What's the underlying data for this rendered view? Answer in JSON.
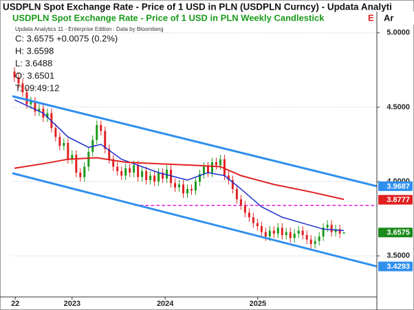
{
  "chart_data": {
    "type": "candlestick",
    "title": "USDPLN Spot Exchange Rate - Price of 1 USD in PLN (USDPLN Curncy) - Updata Analyti",
    "subtitle": "USDPLN Spot Exchange Rate - Price of 1 USD in PLN Weekly Candlestick",
    "subtitle_cut": "E",
    "corner_label": "Ar",
    "source": "Updata Analytics 11 - Enterprise Edition : Data by Bloomberg",
    "info": [
      "C: 3.6575 +0.0075 (0.2%)",
      "H: 3.6598",
      "L: 3.6488",
      "O: 3.6501",
      "T: 09:49:12"
    ],
    "x": [
      0,
      1,
      2,
      3,
      4,
      5,
      6,
      7,
      8,
      9,
      10,
      11,
      12,
      13,
      14,
      15,
      16,
      17,
      18,
      19,
      20,
      21,
      22,
      23,
      24,
      25,
      26,
      27,
      28,
      29,
      30,
      31,
      32,
      33,
      34,
      35,
      36,
      37,
      38,
      39,
      40,
      41,
      42,
      43,
      44,
      45,
      46,
      47,
      48,
      49,
      50,
      51,
      52,
      53,
      54,
      55,
      56,
      57,
      58,
      59,
      60,
      61,
      62,
      63,
      64,
      65,
      66,
      67,
      68,
      69,
      70,
      71,
      72,
      73,
      74,
      75,
      76,
      77,
      78,
      79,
      80
    ],
    "open": [
      4.74,
      4.7,
      4.66,
      4.6,
      4.52,
      4.54,
      4.47,
      4.49,
      4.43,
      4.46,
      4.36,
      4.3,
      4.24,
      4.26,
      4.15,
      4.18,
      4.06,
      4.03,
      4.1,
      4.2,
      4.28,
      4.38,
      4.34,
      4.22,
      4.15,
      4.1,
      4.07,
      4.04,
      4.09,
      4.06,
      4.11,
      4.03,
      4.07,
      4.01,
      4.04,
      4.0,
      4.06,
      4.02,
      4.08,
      3.99,
      3.96,
      3.98,
      3.92,
      3.95,
      3.94,
      4.0,
      4.05,
      4.1,
      4.06,
      4.13,
      4.11,
      4.15,
      4.04,
      4.01,
      3.95,
      3.88,
      3.84,
      3.79,
      3.76,
      3.72,
      3.7,
      3.66,
      3.63,
      3.67,
      3.65,
      3.69,
      3.64,
      3.66,
      3.62,
      3.65,
      3.67,
      3.64,
      3.61,
      3.58,
      3.6,
      3.63,
      3.69,
      3.71,
      3.66,
      3.68,
      3.6501
    ],
    "high": [
      4.77,
      4.73,
      4.69,
      4.63,
      4.57,
      4.57,
      4.52,
      4.52,
      4.49,
      4.49,
      4.39,
      4.33,
      4.29,
      4.29,
      4.21,
      4.21,
      4.09,
      4.13,
      4.23,
      4.31,
      4.41,
      4.41,
      4.37,
      4.25,
      4.18,
      4.13,
      4.1,
      4.12,
      4.12,
      4.14,
      4.14,
      4.1,
      4.1,
      4.07,
      4.07,
      4.09,
      4.09,
      4.11,
      4.11,
      4.02,
      4.01,
      4.01,
      3.98,
      3.98,
      4.03,
      4.08,
      4.13,
      4.13,
      4.16,
      4.16,
      4.18,
      4.18,
      4.07,
      4.04,
      3.98,
      3.91,
      3.87,
      3.82,
      3.79,
      3.75,
      3.73,
      3.69,
      3.7,
      3.7,
      3.72,
      3.72,
      3.69,
      3.69,
      3.68,
      3.7,
      3.7,
      3.67,
      3.64,
      3.63,
      3.66,
      3.72,
      3.74,
      3.74,
      3.71,
      3.71,
      3.6598
    ],
    "low": [
      4.67,
      4.63,
      4.57,
      4.49,
      4.49,
      4.44,
      4.44,
      4.4,
      4.4,
      4.33,
      4.27,
      4.21,
      4.21,
      4.12,
      4.12,
      4.03,
      4.0,
      4.0,
      4.07,
      4.17,
      4.25,
      4.31,
      4.19,
      4.12,
      4.07,
      4.04,
      4.01,
      4.01,
      4.03,
      4.03,
      4.0,
      4.0,
      3.98,
      3.98,
      3.97,
      3.97,
      3.99,
      3.99,
      3.96,
      3.93,
      3.93,
      3.89,
      3.89,
      3.91,
      3.91,
      3.97,
      4.02,
      4.03,
      4.03,
      4.08,
      4.08,
      4.01,
      3.98,
      3.92,
      3.85,
      3.81,
      3.76,
      3.73,
      3.69,
      3.67,
      3.63,
      3.6,
      3.6,
      3.62,
      3.62,
      3.61,
      3.61,
      3.59,
      3.59,
      3.62,
      3.61,
      3.58,
      3.55,
      3.55,
      3.57,
      3.6,
      3.66,
      3.63,
      3.63,
      3.62,
      3.6488
    ],
    "close": [
      4.7,
      4.66,
      4.6,
      4.52,
      4.54,
      4.47,
      4.49,
      4.43,
      4.46,
      4.36,
      4.3,
      4.24,
      4.26,
      4.15,
      4.18,
      4.06,
      4.03,
      4.1,
      4.2,
      4.28,
      4.38,
      4.34,
      4.22,
      4.15,
      4.1,
      4.07,
      4.04,
      4.09,
      4.06,
      4.11,
      4.03,
      4.07,
      4.01,
      4.04,
      4.0,
      4.06,
      4.02,
      4.08,
      3.99,
      3.96,
      3.98,
      3.92,
      3.95,
      3.94,
      4.0,
      4.05,
      4.1,
      4.06,
      4.13,
      4.11,
      4.15,
      4.04,
      4.01,
      3.95,
      3.88,
      3.84,
      3.79,
      3.76,
      3.72,
      3.7,
      3.66,
      3.63,
      3.67,
      3.65,
      3.69,
      3.64,
      3.66,
      3.62,
      3.65,
      3.67,
      3.64,
      3.61,
      3.58,
      3.6,
      3.63,
      3.69,
      3.71,
      3.66,
      3.68,
      3.65,
      3.6575
    ],
    "up_color": "#1a9a1a",
    "down_color": "#e02020",
    "lines": [
      {
        "color": "#1c2fd0",
        "width": 1.5,
        "x": [
          0,
          7,
          13,
          18,
          21,
          26,
          35,
          42,
          47,
          51,
          55,
          60,
          65,
          70,
          75,
          80
        ],
        "values": [
          4.55,
          4.46,
          4.3,
          4.23,
          4.25,
          4.15,
          4.06,
          4.01,
          4.06,
          4.04,
          3.95,
          3.83,
          3.76,
          3.72,
          3.68,
          3.67
        ]
      },
      {
        "color": "#e02020",
        "width": 2,
        "x": [
          0,
          7,
          13,
          20,
          27,
          35,
          43,
          50,
          55,
          63,
          72,
          80
        ],
        "values": [
          4.09,
          4.12,
          4.15,
          4.16,
          4.13,
          4.12,
          4.11,
          4.1,
          4.04,
          3.98,
          3.93,
          3.88
        ]
      },
      {
        "color": "#2f8fef",
        "width": 3,
        "x": [
          -0.5,
          88
        ],
        "values": [
          4.574,
          3.9687
        ]
      },
      {
        "color": "#2f8fef",
        "width": 3,
        "x": [
          -0.5,
          88
        ],
        "values": [
          4.056,
          3.4293
        ]
      }
    ],
    "hline": {
      "value": 3.84,
      "x_start": 29.1,
      "color": "#e020e0"
    },
    "tags": [
      {
        "value": 3.9687,
        "color": "#2f8fef"
      },
      {
        "value": 3.8777,
        "color": "#e02020"
      },
      {
        "value": 3.6575,
        "color": "#1a8a1a"
      },
      {
        "value": 3.4293,
        "color": "#2f8fef"
      }
    ],
    "xlim": [
      -0.5,
      88
    ],
    "xticks": [
      {
        "value": 0.2,
        "label": "22"
      },
      {
        "value": 14,
        "label": "2023"
      },
      {
        "value": 36.6,
        "label": "2024"
      },
      {
        "value": 59.1,
        "label": "2025"
      }
    ],
    "ylim": [
      3.21,
      5.05
    ],
    "yticks": [
      {
        "value": 5,
        "label": "5.0000"
      },
      {
        "value": 4.5,
        "label": "4.5000"
      },
      {
        "value": 4,
        "label": "4.0000"
      },
      {
        "value": 3.5,
        "label": "3.5000"
      }
    ],
    "grid": true
  }
}
